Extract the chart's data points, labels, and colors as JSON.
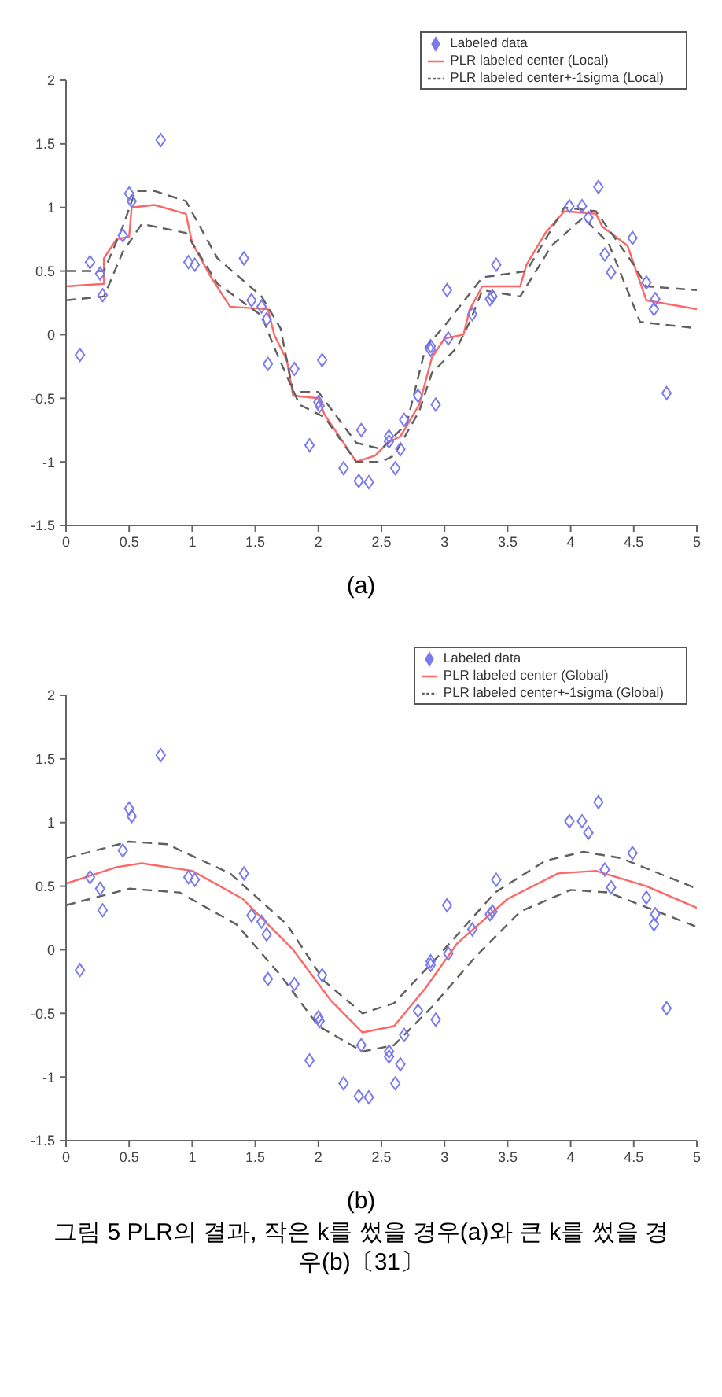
{
  "chart_data": [
    {
      "type": "scatter",
      "xlim": [
        0,
        5
      ],
      "ylim": [
        -1.5,
        2
      ],
      "xticks": [
        0,
        0.5,
        1,
        1.5,
        2,
        2.5,
        3,
        3.5,
        4,
        4.5,
        5
      ],
      "yticks": [
        -1.5,
        -1,
        -0.5,
        0,
        0.5,
        1,
        1.5,
        2
      ],
      "grid": false,
      "legend": "top right",
      "annotations": [
        "(a)"
      ],
      "series": [
        {
          "name": "Labeled data",
          "marker": "diamond",
          "color": "#7b7bef",
          "x": [
            0.19,
            0.27,
            0.29,
            0.45,
            0.5,
            0.52,
            0.75,
            0.97,
            1.02,
            1.41,
            1.47,
            1.55,
            1.59,
            3.02,
            3.22,
            3.36,
            3.38,
            3.41,
            3.99,
            4.09,
            4.14,
            4.22,
            4.27,
            4.32,
            4.49,
            4.6,
            4.67,
            4.66,
            0.11,
            1.6,
            1.81,
            2.03,
            1.93,
            2,
            2.01,
            2.2,
            2.32,
            2.34,
            2.4,
            2.56,
            2.56,
            2.61,
            2.65,
            2.68,
            2.79,
            2.89,
            2.89,
            2.93,
            3.03,
            4.76
          ],
          "values": [
            0.57,
            0.48,
            0.31,
            0.78,
            1.11,
            1.05,
            1.53,
            0.57,
            0.55,
            0.6,
            0.27,
            0.22,
            0.12,
            0.35,
            0.16,
            0.28,
            0.3,
            0.55,
            1.01,
            1.01,
            0.92,
            1.16,
            0.63,
            0.49,
            0.76,
            0.41,
            0.28,
            0.2,
            -0.16,
            -0.23,
            -0.27,
            -0.2,
            -0.87,
            -0.53,
            -0.56,
            -1.05,
            -1.15,
            -0.75,
            -1.16,
            -0.8,
            -0.84,
            -1.05,
            -0.9,
            -0.67,
            -0.48,
            -0.09,
            -0.12,
            -0.55,
            -0.03,
            -0.46
          ]
        },
        {
          "name": "PLR labeled center (Local)",
          "type": "line",
          "line_style": "solid",
          "color": "#ff6666",
          "x": [
            0,
            0.3,
            0.3,
            0.4,
            0.5,
            0.52,
            0.7,
            0.95,
            1,
            1.15,
            1.3,
            1.6,
            1.65,
            1.75,
            1.8,
            2,
            2.05,
            2.2,
            2.3,
            2.45,
            2.55,
            2.65,
            2.8,
            2.9,
            3,
            3.15,
            3.2,
            3.3,
            3.6,
            3.65,
            3.8,
            3.95,
            4.2,
            4.25,
            4.45,
            4.6,
            5
          ],
          "values": [
            0.38,
            0.4,
            0.6,
            0.75,
            0.77,
            1,
            1.02,
            0.95,
            0.72,
            0.45,
            0.22,
            0.2,
            0,
            -0.2,
            -0.48,
            -0.5,
            -0.63,
            -0.85,
            -1,
            -0.95,
            -0.85,
            -0.8,
            -0.55,
            -0.18,
            -0.03,
            0,
            0.2,
            0.38,
            0.38,
            0.55,
            0.8,
            0.97,
            0.95,
            0.85,
            0.7,
            0.27,
            0.2
          ]
        },
        {
          "name": "PLR labeled center+-1sigma (Local)",
          "type": "line",
          "line_style": "dashed",
          "color": "#606060",
          "x": [
            0,
            0.3,
            0.45,
            0.55,
            0.7,
            0.95,
            1.2,
            1.55,
            1.7,
            1.8,
            2,
            2.3,
            2.5,
            2.7,
            2.85,
            3,
            3.3,
            3.65,
            3.95,
            4.2,
            4.5,
            4.6,
            5
          ],
          "values": [
            0.5,
            0.5,
            0.85,
            1.13,
            1.13,
            1.05,
            0.6,
            0.3,
            0.05,
            -0.45,
            -0.45,
            -0.85,
            -0.9,
            -0.7,
            -0.1,
            0.07,
            0.45,
            0.5,
            1,
            0.97,
            0.55,
            0.38,
            0.35
          ]
        },
        {
          "type": "line",
          "line_style": "dashed",
          "color": "#606060",
          "x": [
            0,
            0.3,
            0.45,
            0.6,
            0.95,
            1.2,
            1.55,
            1.65,
            1.85,
            2.05,
            2.3,
            2.5,
            2.6,
            2.8,
            2.9,
            3.1,
            3.2,
            3.3,
            3.6,
            3.85,
            4.1,
            4.3,
            4.55,
            5
          ],
          "values": [
            0.27,
            0.3,
            0.65,
            0.87,
            0.8,
            0.4,
            0.15,
            -0.1,
            -0.55,
            -0.65,
            -1,
            -1,
            -0.95,
            -0.6,
            -0.3,
            -0.1,
            0.1,
            0.35,
            0.3,
            0.7,
            0.92,
            0.72,
            0.1,
            0.05
          ]
        }
      ]
    },
    {
      "type": "scatter",
      "xlim": [
        0,
        5
      ],
      "ylim": [
        -1.5,
        2
      ],
      "xticks": [
        0,
        0.5,
        1,
        1.5,
        2,
        2.5,
        3,
        3.5,
        4,
        4.5,
        5
      ],
      "yticks": [
        -1.5,
        -1,
        -0.5,
        0,
        0.5,
        1,
        1.5,
        2
      ],
      "grid": false,
      "legend": "top right",
      "annotations": [
        "(b)",
        "그림 5  PLR의 결과, 작은 k를 썼을 경우(a)와 큰 k를 썼을 경우(b)〔31〕"
      ],
      "series": [
        {
          "name": "Labeled data",
          "marker": "diamond",
          "color": "#7b7bef",
          "x": [
            0.19,
            0.27,
            0.29,
            0.45,
            0.5,
            0.52,
            0.75,
            0.97,
            1.02,
            1.41,
            1.47,
            1.55,
            1.59,
            3.02,
            3.22,
            3.36,
            3.38,
            3.41,
            3.99,
            4.09,
            4.14,
            4.22,
            4.27,
            4.32,
            4.49,
            4.6,
            4.67,
            4.66,
            0.11,
            1.6,
            1.81,
            2.03,
            1.93,
            2,
            2.01,
            2.2,
            2.32,
            2.34,
            2.4,
            2.56,
            2.56,
            2.61,
            2.65,
            2.68,
            2.79,
            2.89,
            2.89,
            2.93,
            3.03,
            4.76
          ],
          "values": [
            0.57,
            0.48,
            0.31,
            0.78,
            1.11,
            1.05,
            1.53,
            0.57,
            0.55,
            0.6,
            0.27,
            0.22,
            0.12,
            0.35,
            0.16,
            0.28,
            0.3,
            0.55,
            1.01,
            1.01,
            0.92,
            1.16,
            0.63,
            0.49,
            0.76,
            0.41,
            0.28,
            0.2,
            -0.16,
            -0.23,
            -0.27,
            -0.2,
            -0.87,
            -0.53,
            -0.56,
            -1.05,
            -1.15,
            -0.75,
            -1.16,
            -0.8,
            -0.84,
            -1.05,
            -0.9,
            -0.67,
            -0.48,
            -0.09,
            -0.12,
            -0.55,
            -0.03,
            -0.46
          ]
        },
        {
          "name": "PLR labeled center (Global)",
          "type": "line",
          "line_style": "solid",
          "color": "#ff6666",
          "x": [
            0,
            0.4,
            0.6,
            1,
            1.4,
            1.8,
            2.1,
            2.35,
            2.6,
            2.85,
            3.1,
            3.5,
            3.9,
            4.2,
            4.6,
            5
          ],
          "values": [
            0.52,
            0.65,
            0.68,
            0.62,
            0.4,
            0,
            -0.4,
            -0.65,
            -0.6,
            -0.3,
            0.05,
            0.4,
            0.6,
            0.62,
            0.5,
            0.33
          ]
        },
        {
          "name": "PLR labeled center+-1sigma (Global)",
          "type": "line",
          "line_style": "dashed",
          "color": "#606060",
          "x": [
            0,
            0.5,
            0.8,
            1.3,
            1.75,
            2.05,
            2.35,
            2.6,
            2.95,
            3.4,
            3.8,
            4.1,
            4.4,
            5
          ],
          "values": [
            0.72,
            0.85,
            0.83,
            0.6,
            0.2,
            -0.25,
            -0.5,
            -0.42,
            -0.05,
            0.45,
            0.7,
            0.77,
            0.72,
            0.48
          ]
        },
        {
          "type": "line",
          "line_style": "dashed",
          "color": "#606060",
          "x": [
            0,
            0.5,
            0.9,
            1.35,
            1.7,
            2,
            2.35,
            2.6,
            2.9,
            3.25,
            3.6,
            4,
            4.3,
            5
          ],
          "values": [
            0.35,
            0.48,
            0.45,
            0.2,
            -0.2,
            -0.6,
            -0.8,
            -0.75,
            -0.45,
            -0.05,
            0.3,
            0.47,
            0.45,
            0.18
          ]
        }
      ]
    }
  ]
}
